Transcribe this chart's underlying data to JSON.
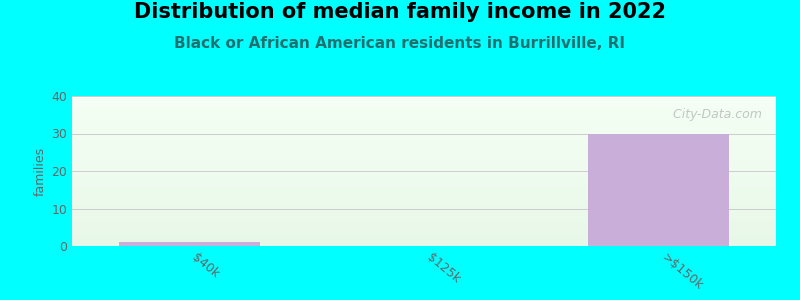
{
  "title": "Distribution of median family income in 2022",
  "subtitle": "Black or African American residents in Burrillville, RI",
  "categories": [
    "$40k",
    "$125k",
    ">$150k"
  ],
  "values": [
    1,
    0,
    30
  ],
  "bar_color": "#c8aed8",
  "background_color": "#00ffff",
  "plot_bg_top": "#f5fff5",
  "plot_bg_bottom": "#e8f8e8",
  "ylabel": "families",
  "ylim": [
    0,
    40
  ],
  "yticks": [
    0,
    10,
    20,
    30,
    40
  ],
  "title_fontsize": 15,
  "subtitle_fontsize": 11,
  "subtitle_color": "#207070",
  "tick_color": "#666666",
  "watermark": "  City-Data.com",
  "watermark_color": "#bbbbbb",
  "grid_color": "#cccccc"
}
